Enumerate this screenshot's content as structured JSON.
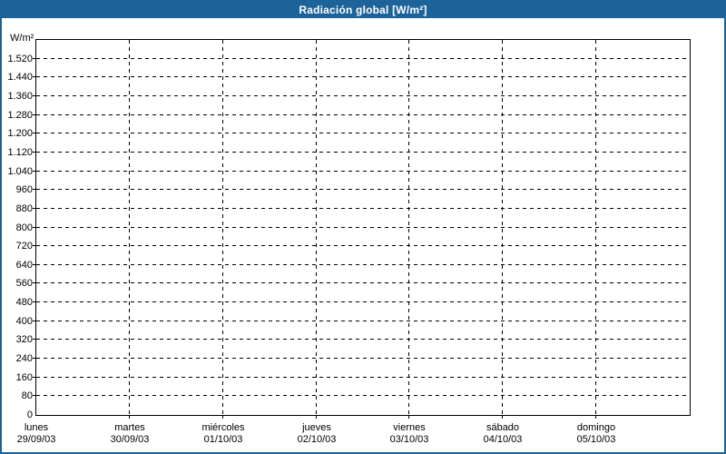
{
  "window": {
    "title": "Radiación global [W/m²]"
  },
  "colors": {
    "titlebar_bg": "#1c6399",
    "frame_border": "#1c6399",
    "title_text": "#ffffff",
    "plot_border": "#000000",
    "grid": "#000000",
    "text": "#000000",
    "background": "#ffffff"
  },
  "chart_data": {
    "type": "line",
    "title": "Radiación global [W/m²]",
    "ylabel": "W/m²",
    "xlabel": "",
    "ylim": [
      0,
      1600
    ],
    "ytick_interval": 80,
    "grid": {
      "horizontal": "dashed",
      "vertical": "dashed"
    },
    "legend": "none",
    "series": [],
    "yticks": [
      {
        "value": 0,
        "label": "0"
      },
      {
        "value": 80,
        "label": "80"
      },
      {
        "value": 160,
        "label": "160"
      },
      {
        "value": 240,
        "label": "240"
      },
      {
        "value": 320,
        "label": "320"
      },
      {
        "value": 400,
        "label": "400"
      },
      {
        "value": 480,
        "label": "480"
      },
      {
        "value": 560,
        "label": "560"
      },
      {
        "value": 640,
        "label": "640"
      },
      {
        "value": 720,
        "label": "720"
      },
      {
        "value": 800,
        "label": "800"
      },
      {
        "value": 880,
        "label": "880"
      },
      {
        "value": 960,
        "label": "960"
      },
      {
        "value": 1040,
        "label": "1.040"
      },
      {
        "value": 1120,
        "label": "1.120"
      },
      {
        "value": 1200,
        "label": "1.200"
      },
      {
        "value": 1280,
        "label": "1.280"
      },
      {
        "value": 1360,
        "label": "1.360"
      },
      {
        "value": 1440,
        "label": "1.440"
      },
      {
        "value": 1520,
        "label": "1.520"
      }
    ],
    "x_categories": [
      {
        "day": "lunes",
        "date": "29/09/03"
      },
      {
        "day": "martes",
        "date": "30/09/03"
      },
      {
        "day": "miércoles",
        "date": "01/10/03"
      },
      {
        "day": "jueves",
        "date": "02/10/03"
      },
      {
        "day": "viernes",
        "date": "03/10/03"
      },
      {
        "day": "sábado",
        "date": "04/10/03"
      },
      {
        "day": "domingo",
        "date": "05/10/03"
      }
    ]
  }
}
